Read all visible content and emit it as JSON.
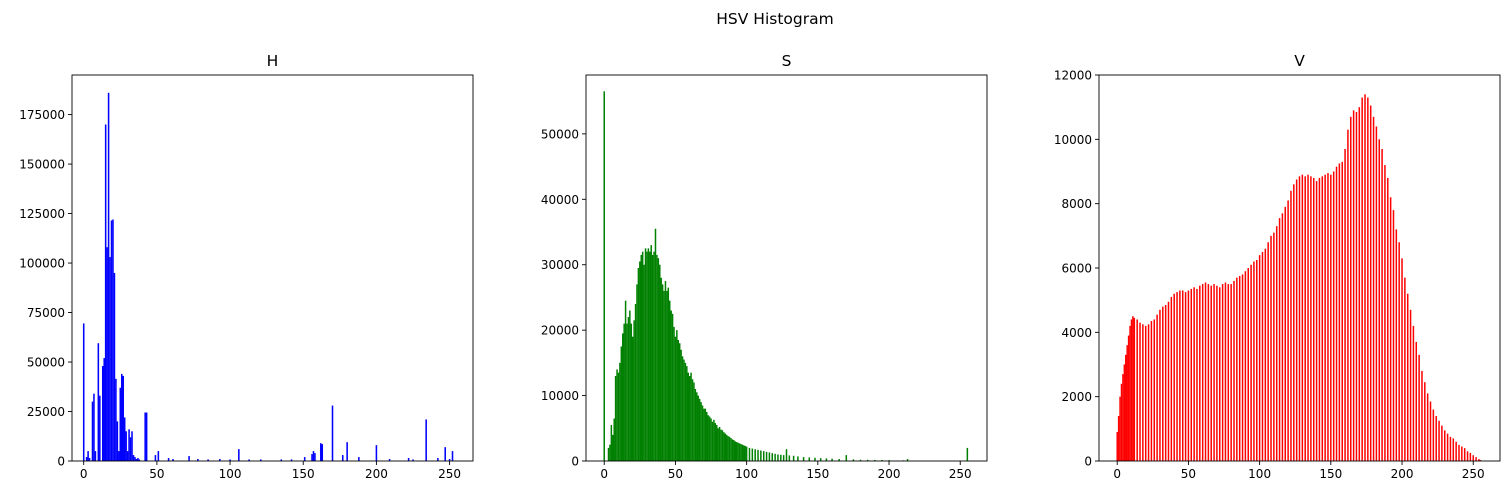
{
  "figure": {
    "suptitle": "HSV Histogram"
  },
  "chart_data": [
    {
      "type": "bar",
      "title": "H",
      "xlabel": "",
      "ylabel": "",
      "color": "#0000ff",
      "xlim": [
        -8,
        266
      ],
      "ylim": [
        0,
        195000
      ],
      "xticks": [
        0,
        50,
        100,
        150,
        200,
        250
      ],
      "yticks": [
        0,
        25000,
        50000,
        75000,
        100000,
        125000,
        150000,
        175000
      ],
      "grid": false,
      "points": [
        [
          0,
          69500
        ],
        [
          2,
          2000
        ],
        [
          3,
          5000
        ],
        [
          4,
          1500
        ],
        [
          6,
          30000
        ],
        [
          7,
          34000
        ],
        [
          8,
          5000
        ],
        [
          10,
          59500
        ],
        [
          11,
          33000
        ],
        [
          13,
          48000
        ],
        [
          14,
          52000
        ],
        [
          15,
          170000
        ],
        [
          16,
          108000
        ],
        [
          17,
          186000
        ],
        [
          18,
          103000
        ],
        [
          19,
          121500
        ],
        [
          20,
          122000
        ],
        [
          21,
          95000
        ],
        [
          22,
          41500
        ],
        [
          23,
          20000
        ],
        [
          24,
          5000
        ],
        [
          25,
          37000
        ],
        [
          26,
          44000
        ],
        [
          27,
          43000
        ],
        [
          28,
          22000
        ],
        [
          29,
          15000
        ],
        [
          30,
          5000
        ],
        [
          31,
          16000
        ],
        [
          32,
          12000
        ],
        [
          33,
          15000
        ],
        [
          34,
          3000
        ],
        [
          35,
          2000
        ],
        [
          36,
          1000
        ],
        [
          37,
          1500
        ],
        [
          38,
          800
        ],
        [
          42,
          24500
        ],
        [
          43,
          24500
        ],
        [
          49,
          3000
        ],
        [
          51,
          5000
        ],
        [
          58,
          1500
        ],
        [
          61,
          1000
        ],
        [
          72,
          2500
        ],
        [
          78,
          1000
        ],
        [
          85,
          800
        ],
        [
          93,
          1000
        ],
        [
          100,
          800
        ],
        [
          106,
          6000
        ],
        [
          113,
          800
        ],
        [
          121,
          800
        ],
        [
          135,
          800
        ],
        [
          142,
          800
        ],
        [
          151,
          2000
        ],
        [
          156,
          3500
        ],
        [
          157,
          5000
        ],
        [
          158,
          4000
        ],
        [
          162,
          9000
        ],
        [
          163,
          8500
        ],
        [
          170,
          28000
        ],
        [
          177,
          3000
        ],
        [
          180,
          9500
        ],
        [
          188,
          2000
        ],
        [
          200,
          8000
        ],
        [
          209,
          1000
        ],
        [
          222,
          1500
        ],
        [
          225,
          800
        ],
        [
          234,
          21000
        ],
        [
          242,
          1500
        ],
        [
          247,
          7000
        ],
        [
          250,
          1000
        ],
        [
          252,
          5000
        ]
      ]
    },
    {
      "type": "bar",
      "title": "S",
      "xlabel": "",
      "ylabel": "",
      "color": "#008000",
      "xlim": [
        -12.8,
        268.8
      ],
      "ylim": [
        0,
        59000
      ],
      "xticks": [
        0,
        50,
        100,
        150,
        200,
        250
      ],
      "yticks": [
        0,
        10000,
        20000,
        30000,
        40000,
        50000
      ],
      "grid": false,
      "points": [
        [
          0,
          56500
        ],
        [
          1,
          0
        ],
        [
          2,
          0
        ],
        [
          3,
          2000
        ],
        [
          4,
          2500
        ],
        [
          5,
          5500
        ],
        [
          6,
          4000
        ],
        [
          7,
          6500
        ],
        [
          8,
          13000
        ],
        [
          9,
          14000
        ],
        [
          10,
          13500
        ],
        [
          11,
          15000
        ],
        [
          12,
          17500
        ],
        [
          13,
          19500
        ],
        [
          14,
          21000
        ],
        [
          15,
          24500
        ],
        [
          16,
          21000
        ],
        [
          17,
          22000
        ],
        [
          18,
          23000
        ],
        [
          19,
          21000
        ],
        [
          20,
          19000
        ],
        [
          21,
          21500
        ],
        [
          22,
          24000
        ],
        [
          23,
          27000
        ],
        [
          24,
          29500
        ],
        [
          25,
          30500
        ],
        [
          26,
          31500
        ],
        [
          27,
          32000
        ],
        [
          28,
          30000
        ],
        [
          29,
          32500
        ],
        [
          30,
          32000
        ],
        [
          31,
          32500
        ],
        [
          32,
          32000
        ],
        [
          33,
          33000
        ],
        [
          34,
          31500
        ],
        [
          35,
          32000
        ],
        [
          36,
          35500
        ],
        [
          37,
          31500
        ],
        [
          38,
          31000
        ],
        [
          39,
          30000
        ],
        [
          40,
          28000
        ],
        [
          41,
          27000
        ],
        [
          42,
          26000
        ],
        [
          43,
          27500
        ],
        [
          44,
          26000
        ],
        [
          45,
          26500
        ],
        [
          46,
          24500
        ],
        [
          47,
          23000
        ],
        [
          48,
          22500
        ],
        [
          49,
          20500
        ],
        [
          50,
          19000
        ],
        [
          51,
          20000
        ],
        [
          52,
          18500
        ],
        [
          53,
          18000
        ],
        [
          54,
          17000
        ],
        [
          55,
          16000
        ],
        [
          56,
          15500
        ],
        [
          57,
          15000
        ],
        [
          58,
          14500
        ],
        [
          59,
          13500
        ],
        [
          60,
          13000
        ],
        [
          61,
          13500
        ],
        [
          62,
          12500
        ],
        [
          63,
          12000
        ],
        [
          64,
          11000
        ],
        [
          65,
          10500
        ],
        [
          66,
          10000
        ],
        [
          67,
          9500
        ],
        [
          68,
          9000
        ],
        [
          69,
          8500
        ],
        [
          70,
          8000
        ],
        [
          71,
          8000
        ],
        [
          72,
          7500
        ],
        [
          73,
          7000
        ],
        [
          74,
          6800
        ],
        [
          75,
          6500
        ],
        [
          76,
          6000
        ],
        [
          77,
          6300
        ],
        [
          78,
          5800
        ],
        [
          79,
          5500
        ],
        [
          80,
          5000
        ],
        [
          81,
          5200
        ],
        [
          82,
          4800
        ],
        [
          83,
          4700
        ],
        [
          84,
          4400
        ],
        [
          85,
          4200
        ],
        [
          86,
          4000
        ],
        [
          87,
          3800
        ],
        [
          88,
          3700
        ],
        [
          89,
          3500
        ],
        [
          90,
          3300
        ],
        [
          91,
          3200
        ],
        [
          92,
          3000
        ],
        [
          93,
          2900
        ],
        [
          94,
          2800
        ],
        [
          95,
          2700
        ],
        [
          96,
          2600
        ],
        [
          97,
          2500
        ],
        [
          98,
          2400
        ],
        [
          99,
          2300
        ],
        [
          100,
          2200
        ],
        [
          102,
          2000
        ],
        [
          104,
          1900
        ],
        [
          106,
          1800
        ],
        [
          108,
          1700
        ],
        [
          110,
          1600
        ],
        [
          112,
          1500
        ],
        [
          114,
          1400
        ],
        [
          116,
          1300
        ],
        [
          118,
          1200
        ],
        [
          120,
          1100
        ],
        [
          122,
          1000
        ],
        [
          124,
          950
        ],
        [
          126,
          900
        ],
        [
          128,
          1800
        ],
        [
          130,
          850
        ],
        [
          133,
          800
        ],
        [
          136,
          700
        ],
        [
          140,
          600
        ],
        [
          144,
          550
        ],
        [
          148,
          500
        ],
        [
          152,
          450
        ],
        [
          156,
          400
        ],
        [
          160,
          350
        ],
        [
          165,
          300
        ],
        [
          170,
          900
        ],
        [
          175,
          250
        ],
        [
          180,
          200
        ],
        [
          185,
          180
        ],
        [
          190,
          160
        ],
        [
          195,
          150
        ],
        [
          200,
          130
        ],
        [
          210,
          100
        ],
        [
          213,
          300
        ],
        [
          220,
          80
        ],
        [
          230,
          60
        ],
        [
          240,
          50
        ],
        [
          250,
          40
        ],
        [
          255,
          2000
        ]
      ]
    },
    {
      "type": "bar",
      "title": "V",
      "xlabel": "",
      "ylabel": "",
      "color": "#ff0000",
      "xlim": [
        -12.8,
        268.8
      ],
      "ylim": [
        0,
        12000
      ],
      "xticks": [
        0,
        50,
        100,
        150,
        200,
        250
      ],
      "yticks": [
        0,
        2000,
        4000,
        6000,
        8000,
        10000,
        12000
      ],
      "grid": false,
      "points": [
        [
          0,
          900
        ],
        [
          1,
          1400
        ],
        [
          2,
          2000
        ],
        [
          3,
          2400
        ],
        [
          4,
          2700
        ],
        [
          5,
          3000
        ],
        [
          6,
          3300
        ],
        [
          7,
          3600
        ],
        [
          8,
          3900
        ],
        [
          9,
          4200
        ],
        [
          10,
          4400
        ],
        [
          11,
          4500
        ],
        [
          12,
          4450
        ],
        [
          14,
          4400
        ],
        [
          16,
          4300
        ],
        [
          18,
          4250
        ],
        [
          20,
          4200
        ],
        [
          22,
          4250
        ],
        [
          24,
          4350
        ],
        [
          26,
          4400
        ],
        [
          28,
          4550
        ],
        [
          30,
          4700
        ],
        [
          32,
          4800
        ],
        [
          34,
          4850
        ],
        [
          36,
          4950
        ],
        [
          38,
          5100
        ],
        [
          40,
          5200
        ],
        [
          42,
          5250
        ],
        [
          44,
          5300
        ],
        [
          46,
          5300
        ],
        [
          48,
          5250
        ],
        [
          50,
          5300
        ],
        [
          52,
          5350
        ],
        [
          54,
          5400
        ],
        [
          56,
          5350
        ],
        [
          58,
          5450
        ],
        [
          60,
          5500
        ],
        [
          62,
          5550
        ],
        [
          64,
          5500
        ],
        [
          66,
          5450
        ],
        [
          68,
          5500
        ],
        [
          70,
          5450
        ],
        [
          72,
          5400
        ],
        [
          74,
          5500
        ],
        [
          76,
          5550
        ],
        [
          78,
          5500
        ],
        [
          80,
          5500
        ],
        [
          82,
          5600
        ],
        [
          84,
          5700
        ],
        [
          86,
          5750
        ],
        [
          88,
          5800
        ],
        [
          90,
          5900
        ],
        [
          92,
          6000
        ],
        [
          94,
          6100
        ],
        [
          96,
          6200
        ],
        [
          98,
          6250
        ],
        [
          100,
          6400
        ],
        [
          102,
          6500
        ],
        [
          104,
          6600
        ],
        [
          106,
          6800
        ],
        [
          108,
          7000
        ],
        [
          110,
          7100
        ],
        [
          112,
          7300
        ],
        [
          114,
          7550
        ],
        [
          116,
          7700
        ],
        [
          118,
          7900
        ],
        [
          120,
          8100
        ],
        [
          122,
          8400
        ],
        [
          124,
          8600
        ],
        [
          126,
          8750
        ],
        [
          128,
          8850
        ],
        [
          130,
          8900
        ],
        [
          132,
          8850
        ],
        [
          134,
          8900
        ],
        [
          136,
          8850
        ],
        [
          138,
          8800
        ],
        [
          140,
          8700
        ],
        [
          142,
          8800
        ],
        [
          144,
          8850
        ],
        [
          146,
          8900
        ],
        [
          148,
          8950
        ],
        [
          150,
          8900
        ],
        [
          152,
          9000
        ],
        [
          154,
          9150
        ],
        [
          156,
          9250
        ],
        [
          158,
          9300
        ],
        [
          160,
          9700
        ],
        [
          162,
          10300
        ],
        [
          164,
          10700
        ],
        [
          166,
          10900
        ],
        [
          168,
          10850
        ],
        [
          170,
          11000
        ],
        [
          172,
          11300
        ],
        [
          174,
          11400
        ],
        [
          176,
          11300
        ],
        [
          178,
          11050
        ],
        [
          180,
          10700
        ],
        [
          182,
          10400
        ],
        [
          184,
          10000
        ],
        [
          186,
          9700
        ],
        [
          188,
          9200
        ],
        [
          190,
          8800
        ],
        [
          192,
          8200
        ],
        [
          194,
          7800
        ],
        [
          196,
          7200
        ],
        [
          198,
          6800
        ],
        [
          200,
          6300
        ],
        [
          202,
          5700
        ],
        [
          204,
          5200
        ],
        [
          206,
          4700
        ],
        [
          208,
          4200
        ],
        [
          210,
          3700
        ],
        [
          212,
          3300
        ],
        [
          214,
          2800
        ],
        [
          216,
          2450
        ],
        [
          218,
          2100
        ],
        [
          220,
          1850
        ],
        [
          222,
          1600
        ],
        [
          224,
          1400
        ],
        [
          226,
          1250
        ],
        [
          228,
          1100
        ],
        [
          230,
          950
        ],
        [
          232,
          850
        ],
        [
          234,
          750
        ],
        [
          236,
          700
        ],
        [
          238,
          600
        ],
        [
          240,
          500
        ],
        [
          242,
          450
        ],
        [
          244,
          400
        ],
        [
          246,
          300
        ],
        [
          248,
          250
        ],
        [
          250,
          180
        ],
        [
          252,
          120
        ],
        [
          254,
          60
        ],
        [
          255,
          30
        ]
      ]
    }
  ]
}
